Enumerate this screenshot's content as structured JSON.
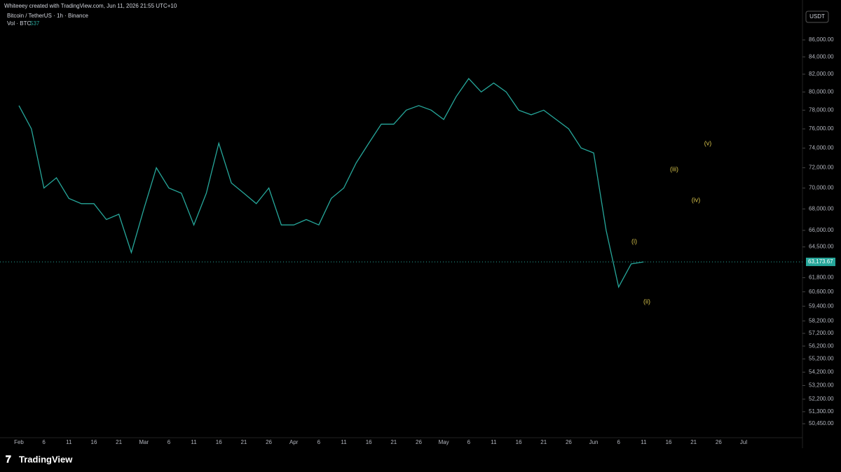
{
  "header": {
    "credit": "Whiteeey created with TradingView.com, Jun 11, 2026 21:55 UTC+10",
    "symbol": "Bitcoin / TetherUS · 1h · Binance",
    "volume_label": "Vol · BTC",
    "volume_value": "537",
    "currency": "USDT",
    "brand": "TradingView"
  },
  "chart_data": {
    "type": "line",
    "log_scale": true,
    "color": "#26a69a",
    "categories": [
      "Feb",
      null,
      "6",
      null,
      "11",
      null,
      "16",
      null,
      "21",
      null,
      "Mar",
      null,
      "6",
      null,
      "11",
      null,
      "16",
      null,
      "21",
      null,
      "26",
      null,
      "Apr",
      null,
      "6",
      null,
      "11",
      null,
      "16",
      null,
      "21",
      null,
      "26",
      null,
      "May",
      null,
      "6",
      null,
      "11",
      null,
      "16",
      null,
      "21",
      null,
      "26",
      null,
      "Jun",
      null,
      "6",
      null,
      "11",
      null,
      "16",
      null,
      "21",
      null,
      "26",
      null,
      "Jul"
    ],
    "values": [
      78500,
      76000,
      70000,
      71000,
      69000,
      68500,
      68500,
      67000,
      67500,
      64000,
      68000,
      72000,
      70000,
      69500,
      66500,
      69500,
      74500,
      70500,
      69500,
      68500,
      70000,
      66500,
      66500,
      67000,
      66500,
      69000,
      70000,
      72500,
      74500,
      76500,
      76500,
      78000,
      78500,
      78000,
      77000,
      79500,
      81500,
      80000,
      81000,
      80000,
      78000,
      77500,
      78000,
      77000,
      76000,
      74000,
      73500,
      66000,
      61000,
      63000,
      63173.67,
      null,
      null,
      null,
      null,
      null,
      null,
      null,
      null
    ],
    "ylim": [
      49480,
      88290
    ],
    "yticks": [
      {
        "value": 86000,
        "label": "86,000.00"
      },
      {
        "value": 84000,
        "label": "84,000.00"
      },
      {
        "value": 82000,
        "label": "82,000.00"
      },
      {
        "value": 80000,
        "label": "80,000.00"
      },
      {
        "value": 78000,
        "label": "78,000.00"
      },
      {
        "value": 76000,
        "label": "76,000.00"
      },
      {
        "value": 74000,
        "label": "74,000.00"
      },
      {
        "value": 72000,
        "label": "72,000.00"
      },
      {
        "value": 70000,
        "label": "70,000.00"
      },
      {
        "value": 68000,
        "label": "68,000.00"
      },
      {
        "value": 66000,
        "label": "66,000.00"
      },
      {
        "value": 64500,
        "label": "64,500.00"
      },
      {
        "value": 61800,
        "label": "61,800.00"
      },
      {
        "value": 60600,
        "label": "60,600.00"
      },
      {
        "value": 59400,
        "label": "59,400.00"
      },
      {
        "value": 58200,
        "label": "58,200.00"
      },
      {
        "value": 57200,
        "label": "57,200.00"
      },
      {
        "value": 56200,
        "label": "56,200.00"
      },
      {
        "value": 55200,
        "label": "55,200.00"
      },
      {
        "value": 54200,
        "label": "54,200.00"
      },
      {
        "value": 53200,
        "label": "53,200.00"
      },
      {
        "value": 52200,
        "label": "52,200.00"
      },
      {
        "value": 51300,
        "label": "51,300.00"
      },
      {
        "value": 50450,
        "label": "50,450.00"
      }
    ],
    "last_price": {
      "value": 63173.67,
      "label": "63,173.67"
    },
    "annotations": [
      "(i)",
      "(ii)",
      "(iii)",
      "(iv)",
      "(v)"
    ]
  }
}
